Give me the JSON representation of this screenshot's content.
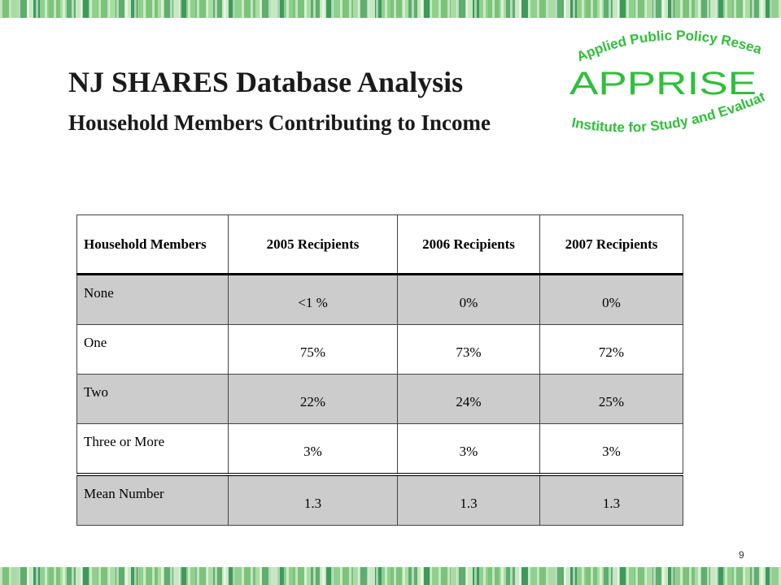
{
  "slide": {
    "title": "NJ SHARES Database Analysis",
    "subtitle": "Household Members Contributing to Income",
    "page_number": "9"
  },
  "logo": {
    "top_text": "Applied Public Policy Research",
    "main_text": "APPRISE",
    "bottom_text": "Institute for Study and Evaluation",
    "color": "#2fbf3a"
  },
  "table": {
    "headers": [
      "Household Members",
      "2005 Recipients",
      "2006 Recipients",
      "2007 Recipients"
    ],
    "rows": [
      {
        "label": "None",
        "values": [
          "<1 %",
          "0%",
          "0%"
        ]
      },
      {
        "label": "One",
        "values": [
          "75%",
          "73%",
          "72%"
        ]
      },
      {
        "label": "Two",
        "values": [
          "22%",
          "24%",
          "25%"
        ]
      },
      {
        "label": "Three or More",
        "values": [
          "3%",
          "3%",
          "3%"
        ]
      },
      {
        "label": "Mean Number",
        "values": [
          "1.3",
          "1.3",
          "1.3"
        ]
      }
    ],
    "shade_color": "#cccccc"
  }
}
